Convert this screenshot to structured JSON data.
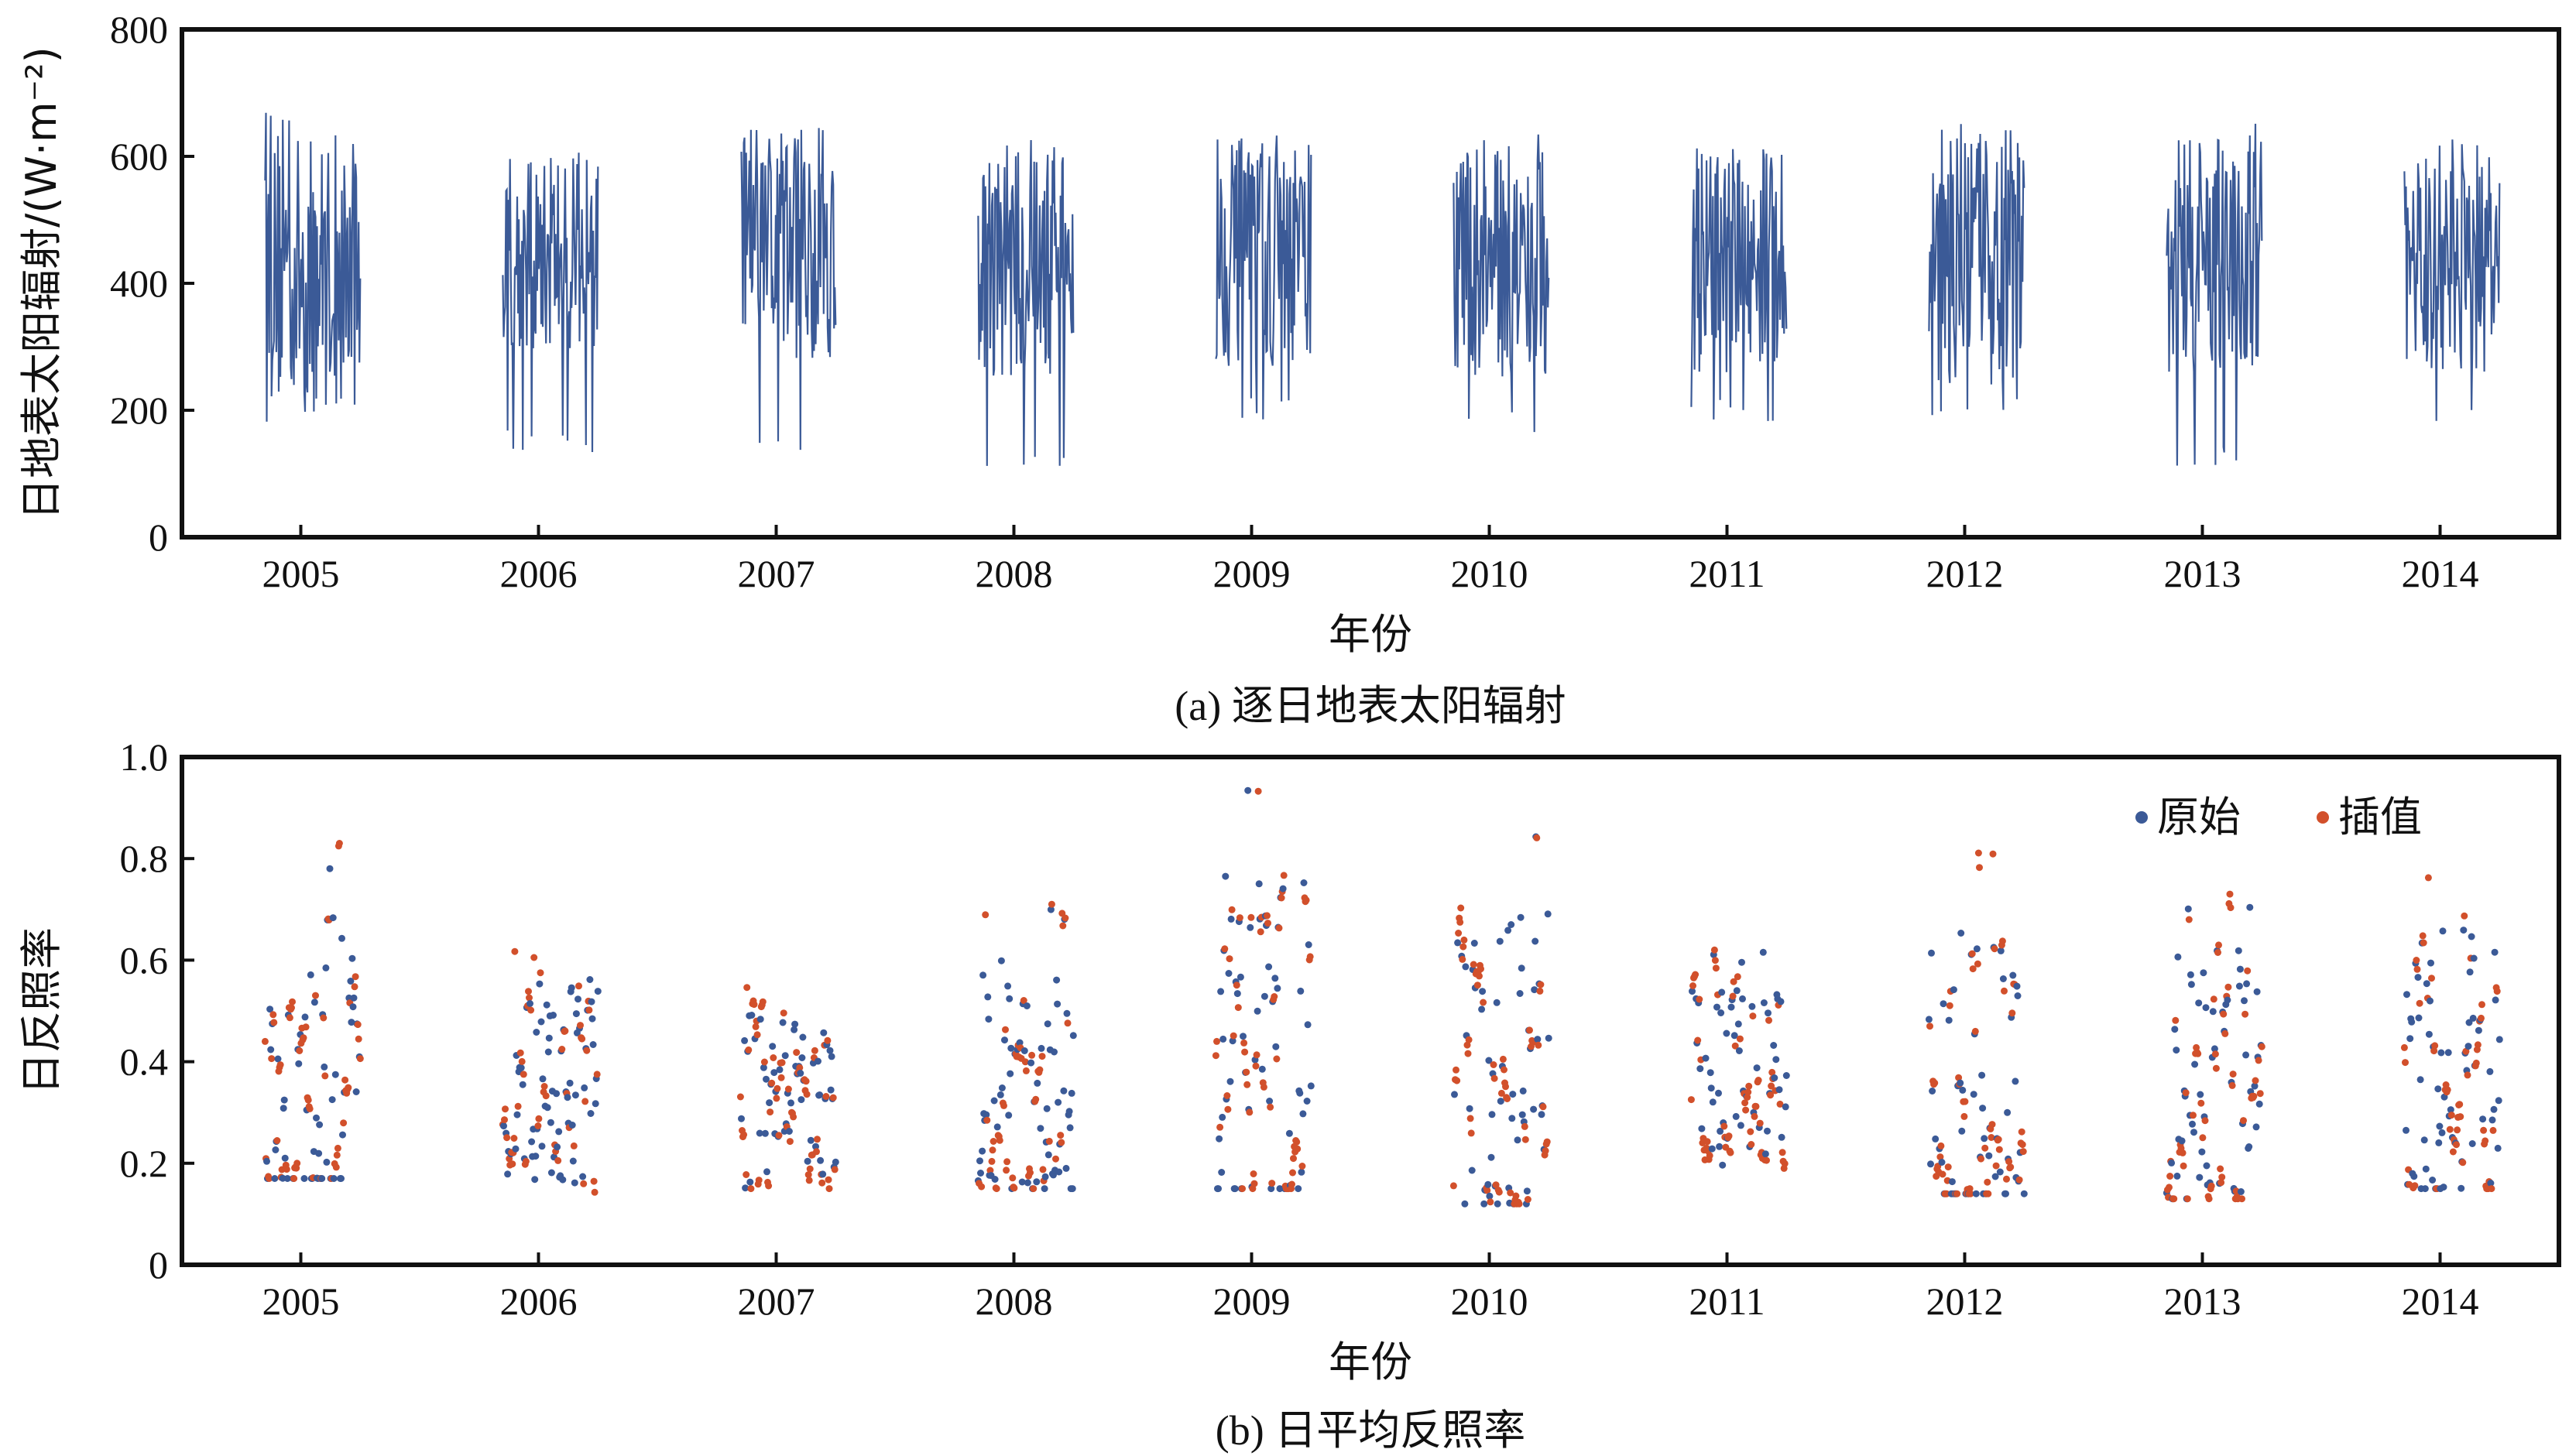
{
  "colors": {
    "original": "#3b5a97",
    "interpolated": "#d2502b",
    "axis": "#111111"
  },
  "chart_data": [
    {
      "type": "line",
      "caption": "(a) 逐日地表太阳辐射",
      "xlabel": "年份",
      "ylabel": "日地表太阳辐射/(W·m⁻²)",
      "ylim": [
        0,
        800
      ],
      "yticks": [
        "0",
        "200",
        "400",
        "600",
        "800"
      ],
      "xlim": [
        2004.5,
        2014.5
      ],
      "xticks": [
        "2005",
        "2006",
        "2007",
        "2008",
        "2009",
        "2010",
        "2011",
        "2012",
        "2013",
        "2014"
      ],
      "grid": false,
      "series": [
        {
          "color": "#3b5a97",
          "segments": [
            {
              "season": "2005",
              "start": 2004.85,
              "end": 2005.25,
              "mean": 420,
              "max": 670,
              "min": 180
            },
            {
              "season": "2006",
              "start": 2005.85,
              "end": 2006.25,
              "mean": 440,
              "max": 620,
              "min": 130
            },
            {
              "season": "2007",
              "start": 2006.85,
              "end": 2007.25,
              "mean": 450,
              "max": 650,
              "min": 120
            },
            {
              "season": "2008",
              "start": 2007.85,
              "end": 2008.25,
              "mean": 430,
              "max": 640,
              "min": 95
            },
            {
              "season": "2009",
              "start": 2008.85,
              "end": 2009.25,
              "mean": 440,
              "max": 640,
              "min": 180
            },
            {
              "season": "2010",
              "start": 2009.85,
              "end": 2010.25,
              "mean": 430,
              "max": 640,
              "min": 160
            },
            {
              "season": "2011",
              "start": 2010.85,
              "end": 2011.25,
              "mean": 430,
              "max": 630,
              "min": 180
            },
            {
              "season": "2012",
              "start": 2011.85,
              "end": 2012.25,
              "mean": 430,
              "max": 660,
              "min": 180
            },
            {
              "season": "2013",
              "start": 2012.85,
              "end": 2013.25,
              "mean": 440,
              "max": 660,
              "min": 105
            },
            {
              "season": "2014",
              "start": 2013.85,
              "end": 2014.25,
              "mean": 430,
              "max": 630,
              "min": 165
            }
          ]
        }
      ]
    },
    {
      "type": "scatter",
      "caption": "(b) 日平均反照率",
      "xlabel": "年份",
      "ylabel": "日反照率",
      "ylim": [
        0,
        1.0
      ],
      "yticks": [
        "0",
        "0.2",
        "0.4",
        "0.6",
        "0.8",
        "1.0"
      ],
      "xlim": [
        2004.5,
        2014.5
      ],
      "xticks": [
        "2005",
        "2006",
        "2007",
        "2008",
        "2009",
        "2010",
        "2011",
        "2012",
        "2013",
        "2014"
      ],
      "grid": false,
      "legend": {
        "position": "top-right",
        "entries": [
          "原始",
          "插值"
        ]
      },
      "series": [
        {
          "name": "原始",
          "color": "#3b5a97"
        },
        {
          "name": "插值",
          "color": "#d2502b"
        }
      ],
      "seasons": [
        {
          "season": "2005",
          "start": 2004.85,
          "end": 2005.25,
          "mean": 0.36,
          "max": 0.83,
          "min": 0.17
        },
        {
          "season": "2006",
          "start": 2005.85,
          "end": 2006.25,
          "mean": 0.36,
          "max": 0.65,
          "min": 0.13
        },
        {
          "season": "2007",
          "start": 2006.85,
          "end": 2007.25,
          "mean": 0.33,
          "max": 0.59,
          "min": 0.15
        },
        {
          "season": "2008",
          "start": 2007.85,
          "end": 2008.25,
          "mean": 0.36,
          "max": 0.71,
          "min": 0.15
        },
        {
          "season": "2009",
          "start": 2008.85,
          "end": 2009.25,
          "mean": 0.4,
          "max": 0.96,
          "min": 0.15
        },
        {
          "season": "2010",
          "start": 2009.85,
          "end": 2010.25,
          "mean": 0.38,
          "max": 0.85,
          "min": 0.12
        },
        {
          "season": "2011",
          "start": 2010.85,
          "end": 2011.25,
          "mean": 0.37,
          "max": 0.62,
          "min": 0.19
        },
        {
          "season": "2012",
          "start": 2011.85,
          "end": 2012.25,
          "mean": 0.3,
          "max": 0.84,
          "min": 0.14
        },
        {
          "season": "2013",
          "start": 2012.85,
          "end": 2013.25,
          "mean": 0.36,
          "max": 0.73,
          "min": 0.13
        },
        {
          "season": "2014",
          "start": 2013.85,
          "end": 2014.25,
          "mean": 0.38,
          "max": 0.78,
          "min": 0.15
        }
      ]
    }
  ]
}
